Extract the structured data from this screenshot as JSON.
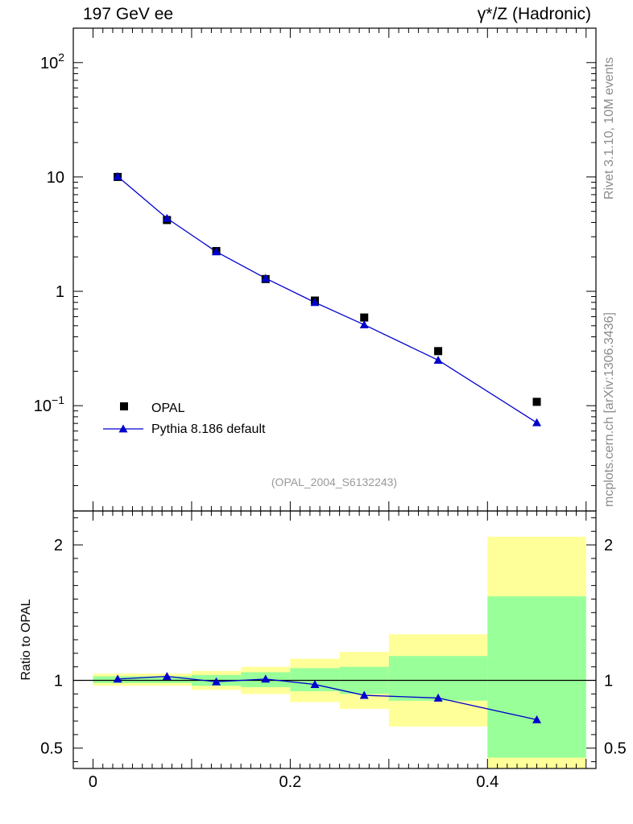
{
  "header": {
    "left": "197 GeV ee",
    "right": "γ*/Z (Hadronic)"
  },
  "side_labels": {
    "rivet": "Rivet 3.1.10,  10M events",
    "mcplots": "mcplots.cern.ch [arXiv:1306.3436]"
  },
  "analysis_id": "(OPAL_2004_S6132243)",
  "colors": {
    "mc": "#0000cc",
    "data": "#000000",
    "band_stat": "#99ff99",
    "band_total": "#ffff99",
    "ref_label": "#999999"
  },
  "chart_data": [
    {
      "type": "scatter",
      "name": "main",
      "yscale": "log",
      "xlim": [
        -0.02,
        0.51
      ],
      "ylim": [
        0.012,
        200
      ],
      "ytick_labels": [
        {
          "value": 100,
          "base": "10",
          "exp": "2"
        },
        {
          "value": 10,
          "base": "10",
          "exp": ""
        },
        {
          "value": 1,
          "base": "1",
          "exp": ""
        },
        {
          "value": 0.1,
          "base": "10",
          "exp": "−1"
        }
      ],
      "legend": [
        "OPAL",
        "Pythia 8.186 default"
      ],
      "legend_position": "bottom-left",
      "series": [
        {
          "name": "OPAL",
          "marker": "square",
          "x": [
            0.025,
            0.075,
            0.125,
            0.175,
            0.225,
            0.275,
            0.35,
            0.45
          ],
          "values": [
            10.0,
            4.2,
            2.25,
            1.28,
            0.83,
            0.59,
            0.3,
            0.108
          ]
        },
        {
          "name": "Pythia 8.186 default",
          "marker": "triangle",
          "x": [
            0.025,
            0.075,
            0.125,
            0.175,
            0.225,
            0.275,
            0.35,
            0.45
          ],
          "values": [
            10.1,
            4.35,
            2.22,
            1.3,
            0.8,
            0.51,
            0.25,
            0.071
          ]
        }
      ]
    },
    {
      "type": "scatter",
      "name": "ratio",
      "ylabel": "Ratio to OPAL",
      "xlim": [
        -0.02,
        0.51
      ],
      "ylim": [
        0.35,
        2.25
      ],
      "x_ticks": [
        0,
        0.2,
        0.4
      ],
      "x_tick_labels": [
        "0",
        "0.2",
        "0.4"
      ],
      "y_ticks": [
        0.5,
        1,
        2
      ],
      "y_tick_labels": [
        "0.5",
        "1",
        "2"
      ],
      "bins": [
        {
          "lo": 0.0,
          "hi": 0.1,
          "stat": [
            0.98,
            1.03
          ],
          "total": [
            0.96,
            1.05
          ]
        },
        {
          "lo": 0.1,
          "hi": 0.15,
          "stat": [
            0.96,
            1.04
          ],
          "total": [
            0.93,
            1.07
          ]
        },
        {
          "lo": 0.15,
          "hi": 0.2,
          "stat": [
            0.95,
            1.06
          ],
          "total": [
            0.9,
            1.1
          ]
        },
        {
          "lo": 0.2,
          "hi": 0.25,
          "stat": [
            0.92,
            1.09
          ],
          "total": [
            0.84,
            1.16
          ]
        },
        {
          "lo": 0.25,
          "hi": 0.3,
          "stat": [
            0.9,
            1.1
          ],
          "total": [
            0.79,
            1.21
          ]
        },
        {
          "lo": 0.3,
          "hi": 0.4,
          "stat": [
            0.85,
            1.18
          ],
          "total": [
            0.66,
            1.34
          ]
        },
        {
          "lo": 0.4,
          "hi": 0.5,
          "stat": [
            0.43,
            1.62
          ],
          "total": [
            0.35,
            2.06
          ]
        }
      ],
      "series": [
        {
          "name": "Pythia 8.186 default",
          "x": [
            0.025,
            0.075,
            0.125,
            0.175,
            0.225,
            0.275,
            0.35,
            0.45
          ],
          "values": [
            1.01,
            1.03,
            0.99,
            1.01,
            0.97,
            0.89,
            0.87,
            0.71
          ]
        }
      ]
    }
  ]
}
